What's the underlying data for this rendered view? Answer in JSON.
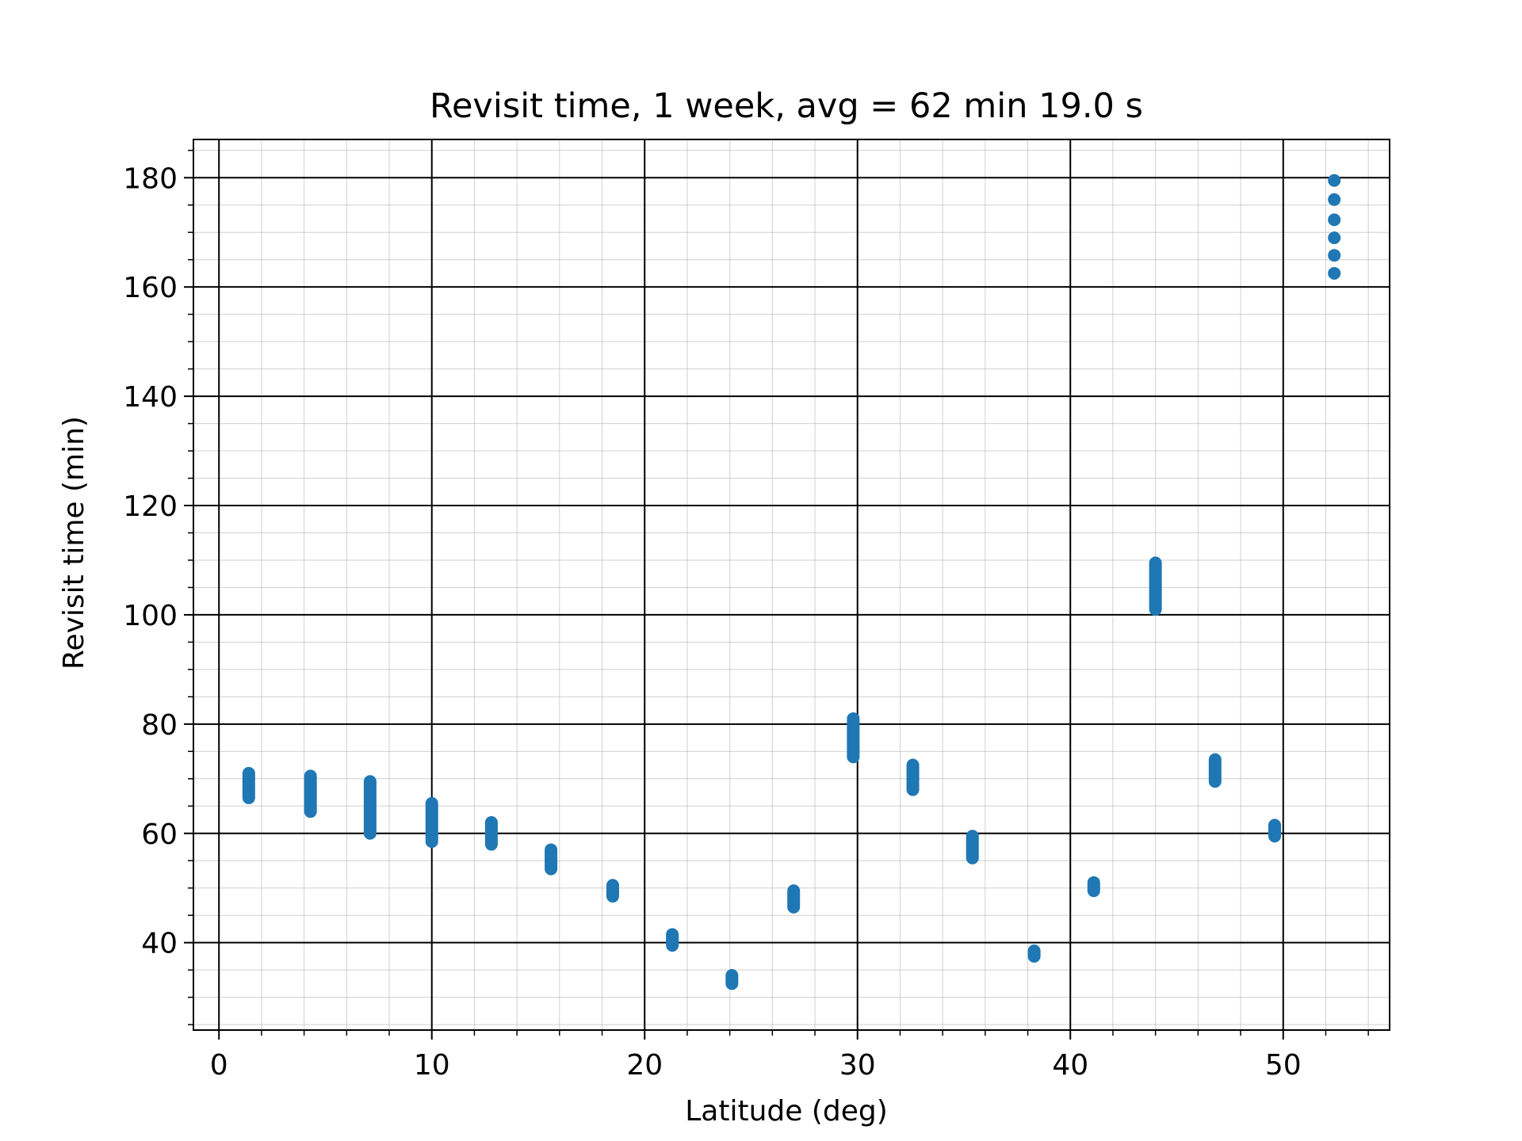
{
  "chart_data": {
    "type": "scatter",
    "title": "Revisit time, 1 week, avg = 62 min 19.0 s",
    "xlabel": "Latitude (deg)",
    "ylabel": "Revisit time (min)",
    "xlim": [
      -1.2,
      55.0
    ],
    "ylim": [
      24,
      187
    ],
    "x_ticks": [
      0,
      10,
      20,
      30,
      40,
      50
    ],
    "y_ticks": [
      40,
      60,
      80,
      100,
      120,
      140,
      160,
      180
    ],
    "x_minor_step": 2,
    "y_minor_step": 5,
    "grid": {
      "major": true,
      "minor": true
    },
    "marker_color": "#1f77b4",
    "groups": [
      {
        "x": 1.4,
        "y_min": 66.5,
        "y_max": 71.0
      },
      {
        "x": 4.3,
        "y_min": 64.0,
        "y_max": 70.5
      },
      {
        "x": 7.1,
        "y_min": 60.0,
        "y_max": 69.5
      },
      {
        "x": 10.0,
        "y_min": 58.5,
        "y_max": 65.5
      },
      {
        "x": 12.8,
        "y_min": 58.0,
        "y_max": 62.0
      },
      {
        "x": 15.6,
        "y_min": 53.5,
        "y_max": 57.0
      },
      {
        "x": 18.5,
        "y_min": 48.5,
        "y_max": 50.5
      },
      {
        "x": 21.3,
        "y_min": 39.5,
        "y_max": 41.5
      },
      {
        "x": 24.1,
        "y_min": 32.5,
        "y_max": 34.0
      },
      {
        "x": 27.0,
        "y_min": 46.5,
        "y_max": 49.5
      },
      {
        "x": 29.8,
        "y_min": 74.0,
        "y_max": 81.0
      },
      {
        "x": 32.6,
        "y_min": 68.0,
        "y_max": 72.5
      },
      {
        "x": 35.4,
        "y_min": 55.5,
        "y_max": 59.5
      },
      {
        "x": 38.3,
        "y_min": 37.5,
        "y_max": 38.5
      },
      {
        "x": 41.1,
        "y_min": 49.5,
        "y_max": 51.0
      },
      {
        "x": 44.0,
        "y_min": 101.0,
        "y_max": 109.5
      },
      {
        "x": 46.8,
        "y_min": 69.5,
        "y_max": 73.5
      },
      {
        "x": 49.6,
        "y_min": 59.5,
        "y_max": 61.5
      }
    ],
    "points": [
      {
        "x": 52.4,
        "y": 179.5
      },
      {
        "x": 52.4,
        "y": 176.0
      },
      {
        "x": 52.4,
        "y": 172.3
      },
      {
        "x": 52.4,
        "y": 169.0
      },
      {
        "x": 52.4,
        "y": 165.8
      },
      {
        "x": 52.4,
        "y": 162.5
      }
    ]
  }
}
